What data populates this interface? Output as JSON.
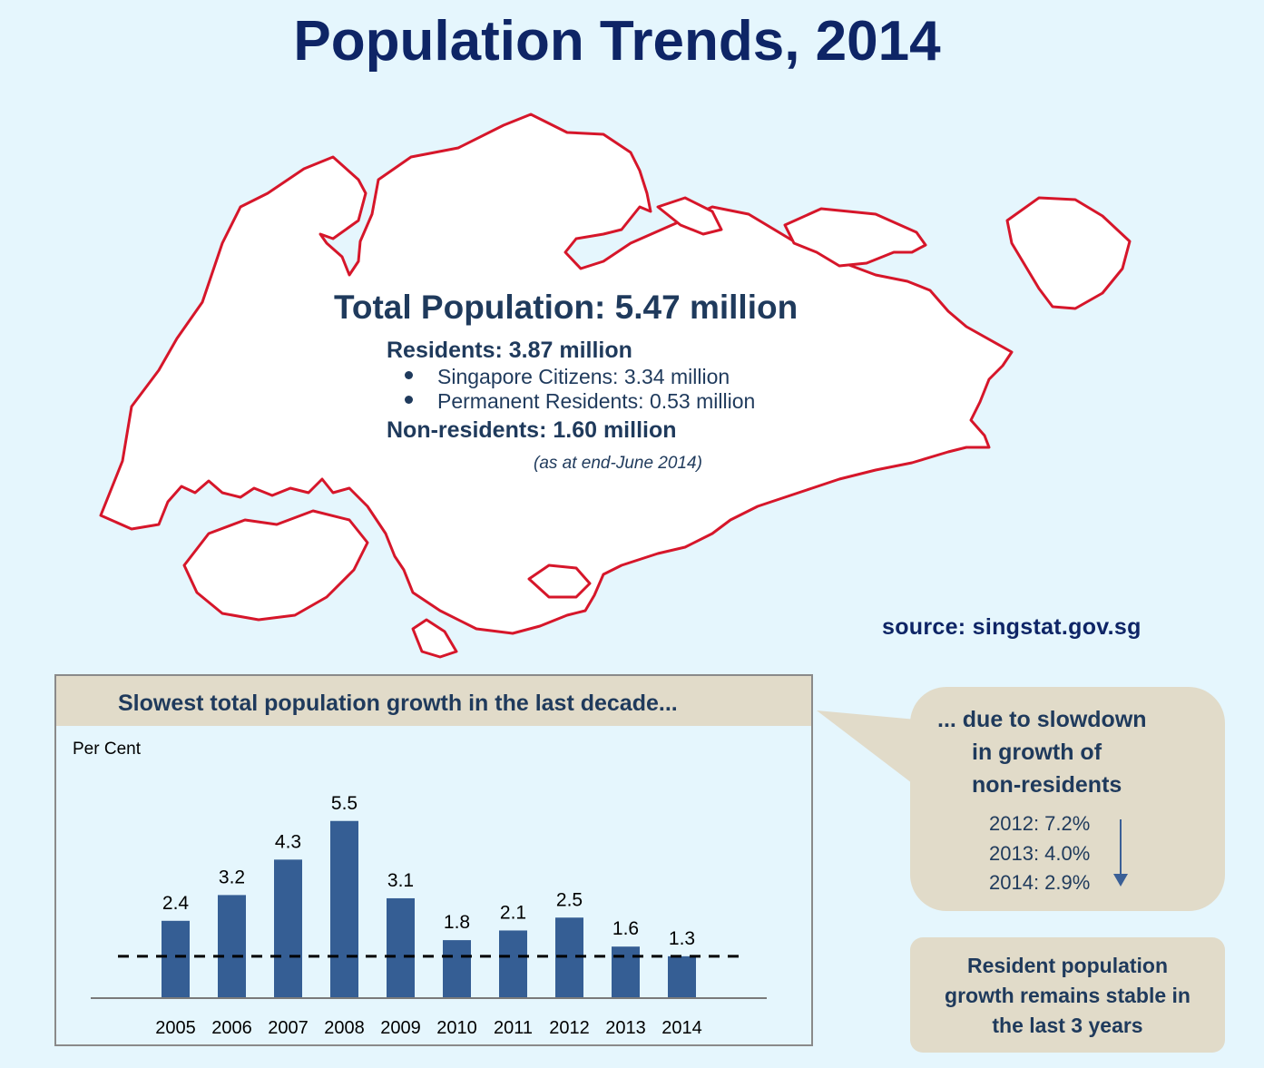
{
  "title": "Population Trends, 2014",
  "summary": {
    "total": "Total Population: 5.47 million",
    "residents": "Residents: 3.87 million",
    "citizens": "Singapore Citizens: 3.34 million",
    "prs": "Permanent Residents: 0.53 million",
    "non_residents": "Non-residents: 1.60 million",
    "as_at": "(as at end-June 2014)"
  },
  "source": "source: singstat.gov.sg",
  "map_colors": {
    "outline": "#d6162a",
    "fill": "#ffffff"
  },
  "chart_data": {
    "type": "bar",
    "title": "Slowest total population growth in the last decade...",
    "ylabel": "Per Cent",
    "xlabel": "",
    "categories": [
      "2005",
      "2006",
      "2007",
      "2008",
      "2009",
      "2010",
      "2011",
      "2012",
      "2013",
      "2014"
    ],
    "values": [
      2.4,
      3.2,
      4.3,
      5.5,
      3.1,
      1.8,
      2.1,
      2.5,
      1.6,
      1.3
    ],
    "value_labels": [
      "2.4",
      "3.2",
      "4.3",
      "5.5",
      "3.1",
      "1.8",
      "2.1",
      "2.5",
      "1.6",
      "1.3"
    ],
    "reference_line": 1.3,
    "ylim": [
      0,
      6
    ],
    "bar_color": "#355e94",
    "grid": false,
    "legend": "none"
  },
  "callout": {
    "lines": [
      "... due to slowdown",
      "in growth of",
      "non-residents"
    ],
    "rates": [
      "2012: 7.2%",
      "2013: 4.0%",
      "2014: 2.9%"
    ]
  },
  "note": {
    "lines": [
      "Resident population",
      "growth remains stable in",
      "the last 3 years"
    ]
  }
}
